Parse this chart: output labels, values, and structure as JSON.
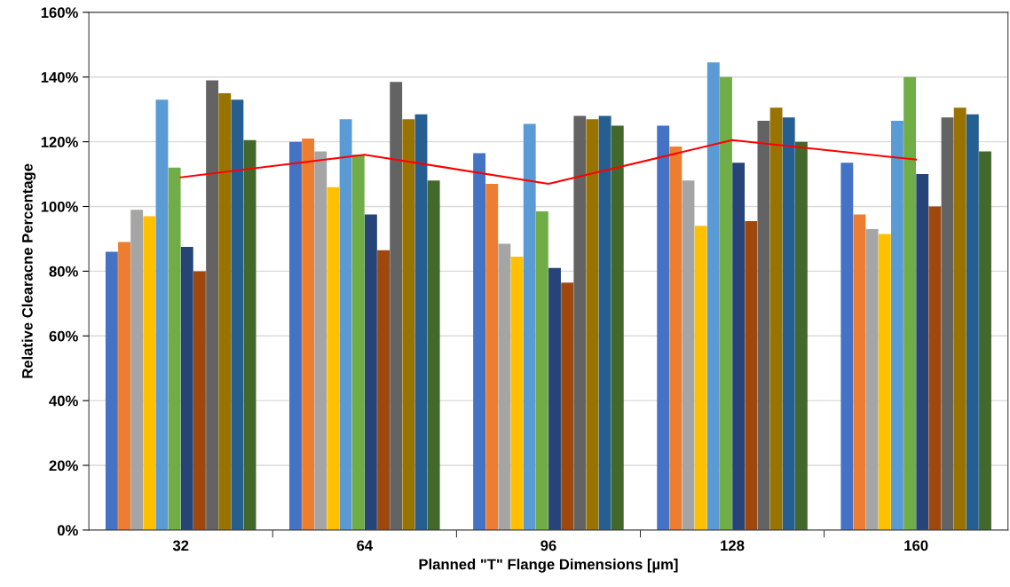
{
  "chart_data": {
    "type": "bar",
    "xlabel": "Planned \"T\" Flange Dimensions [µm]",
    "ylabel": "Relative Clearacne Percentage",
    "categories": [
      "32",
      "64",
      "96",
      "128",
      "160"
    ],
    "series": [
      {
        "color": "#4472c4",
        "values": [
          86,
          120,
          116.5,
          125,
          113.5
        ]
      },
      {
        "color": "#ed7d31",
        "values": [
          89,
          121,
          107,
          118.5,
          97.5
        ]
      },
      {
        "color": "#a5a5a5",
        "values": [
          99,
          117,
          88.5,
          108,
          93
        ]
      },
      {
        "color": "#ffc000",
        "values": [
          97,
          106,
          84.5,
          94,
          91.5
        ]
      },
      {
        "color": "#5b9bd5",
        "values": [
          133,
          127,
          125.5,
          144.5,
          126.5
        ]
      },
      {
        "color": "#70ad47",
        "values": [
          112,
          116,
          98.5,
          140,
          140
        ]
      },
      {
        "color": "#264478",
        "values": [
          87.5,
          97.5,
          81,
          113.5,
          110
        ]
      },
      {
        "color": "#9e480e",
        "values": [
          80,
          86.5,
          76.5,
          95.5,
          100
        ]
      },
      {
        "color": "#636363",
        "values": [
          139,
          138.5,
          128,
          126.5,
          127.5
        ]
      },
      {
        "color": "#997300",
        "values": [
          135,
          127,
          127,
          130.5,
          130.5
        ]
      },
      {
        "color": "#255e91",
        "values": [
          133,
          128.5,
          128,
          127.5,
          128.5
        ]
      },
      {
        "color": "#43682b",
        "values": [
          120.5,
          108,
          125,
          120,
          117
        ]
      },
      {
        "type": "line",
        "color": "#ff0000",
        "values": [
          109,
          116,
          107,
          120.5,
          114.5
        ]
      }
    ],
    "ylim": [
      0,
      160
    ],
    "yticks": [
      {
        "value": 0,
        "label": "0%"
      },
      {
        "value": 20,
        "label": "20%"
      },
      {
        "value": 40,
        "label": "40%"
      },
      {
        "value": 60,
        "label": "60%"
      },
      {
        "value": 80,
        "label": "80%"
      },
      {
        "value": 100,
        "label": "100%"
      },
      {
        "value": 120,
        "label": "120%"
      },
      {
        "value": 140,
        "label": "140%"
      },
      {
        "value": 160,
        "label": "160%"
      }
    ],
    "grid": "y",
    "marker": "none",
    "line_style": "solid"
  }
}
